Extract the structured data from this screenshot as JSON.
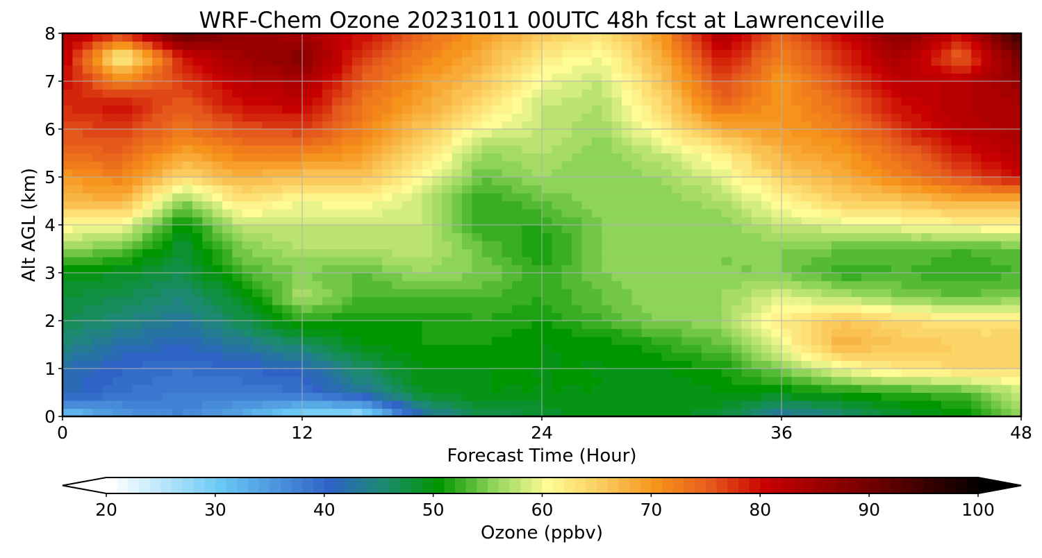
{
  "chart_data": {
    "type": "heatmap",
    "title": "WRF-Chem Ozone  20231011 00UTC 48h fcst at Lawrenceville",
    "xlabel": "Forecast Time (Hour)",
    "ylabel": "Alt AGL (km)",
    "xlim": [
      0,
      48
    ],
    "ylim": [
      0,
      8
    ],
    "x_ticks": [
      0,
      12,
      24,
      36,
      48
    ],
    "y_ticks": [
      0,
      1,
      2,
      3,
      4,
      5,
      6,
      7,
      8
    ],
    "grid": true,
    "x": [
      0,
      3,
      6,
      9,
      12,
      15,
      18,
      21,
      24,
      27,
      30,
      33,
      36,
      39,
      42,
      45,
      48
    ],
    "y": [
      0,
      0.5,
      1,
      1.5,
      2,
      2.5,
      3,
      3.5,
      4,
      4.5,
      5,
      5.5,
      6,
      6.5,
      7,
      7.5,
      8
    ],
    "values": [
      [
        30,
        35,
        37,
        33,
        28,
        26,
        42,
        47,
        48,
        50,
        50,
        48,
        42,
        45,
        48,
        50,
        56
      ],
      [
        42,
        39,
        38,
        38,
        39,
        43,
        49,
        50,
        50,
        50,
        49,
        50,
        50,
        51,
        52,
        53,
        58
      ],
      [
        42,
        40,
        39,
        40,
        41,
        46,
        50,
        50,
        50,
        50,
        50,
        51,
        55,
        60,
        63,
        64,
        64
      ],
      [
        45,
        42,
        41,
        43,
        46,
        50,
        51,
        51,
        50,
        50,
        52,
        54,
        60,
        68,
        66,
        65,
        65
      ],
      [
        47,
        45,
        43,
        47,
        52,
        51,
        51,
        52,
        51,
        53,
        55,
        56,
        62,
        66,
        64,
        63,
        63
      ],
      [
        48,
        47,
        45,
        49,
        57,
        53,
        53,
        53,
        52,
        54,
        56,
        56,
        59,
        57,
        55,
        54,
        55
      ],
      [
        50,
        49,
        47,
        53,
        55,
        54,
        56,
        55,
        52,
        55,
        56,
        55,
        55,
        52,
        53,
        52,
        53
      ],
      [
        56,
        54,
        48,
        55,
        57,
        57,
        58,
        54,
        51,
        55,
        56,
        55,
        55,
        54,
        54,
        53,
        54
      ],
      [
        61,
        60,
        50,
        58,
        58,
        58,
        58,
        52,
        52,
        55,
        55,
        55,
        58,
        59,
        60,
        61,
        62
      ],
      [
        67,
        68,
        55,
        63,
        60,
        61,
        58,
        52,
        54,
        56,
        55,
        57,
        61,
        65,
        66,
        68,
        68
      ],
      [
        70,
        72,
        64,
        68,
        66,
        66,
        61,
        54,
        56,
        55,
        56,
        59,
        65,
        68,
        72,
        76,
        80
      ],
      [
        74,
        75,
        69,
        72,
        72,
        70,
        64,
        56,
        57,
        55,
        58,
        62,
        68,
        70,
        74,
        79,
        83
      ],
      [
        76,
        77,
        73,
        76,
        77,
        72,
        66,
        60,
        58,
        56,
        62,
        68,
        70,
        72,
        78,
        82,
        84
      ],
      [
        78,
        80,
        75,
        80,
        81,
        73,
        69,
        64,
        58,
        57,
        64,
        74,
        70,
        74,
        80,
        83,
        84
      ],
      [
        80,
        72,
        77,
        82,
        84,
        75,
        70,
        66,
        60,
        58,
        66,
        77,
        70,
        76,
        82,
        82,
        86
      ],
      [
        82,
        60,
        79,
        85,
        88,
        77,
        72,
        68,
        62,
        60,
        68,
        80,
        72,
        78,
        84,
        74,
        90
      ],
      [
        84,
        78,
        92,
        86,
        84,
        80,
        74,
        70,
        66,
        63,
        70,
        84,
        74,
        80,
        88,
        80,
        96
      ]
    ],
    "colorbar": {
      "label": "Ozone  (ppbv)",
      "min": 20,
      "max": 100,
      "step": 1,
      "extend": "both",
      "ticks": [
        20,
        30,
        40,
        50,
        60,
        70,
        80,
        90,
        100
      ],
      "colormap_anchors": [
        {
          "value": 20,
          "color": "#ffffff"
        },
        {
          "value": 30,
          "color": "#6ac8f5"
        },
        {
          "value": 40,
          "color": "#2f63c6"
        },
        {
          "value": 45,
          "color": "#1c8a70"
        },
        {
          "value": 50,
          "color": "#009600"
        },
        {
          "value": 55,
          "color": "#8ed35a"
        },
        {
          "value": 60,
          "color": "#fffc96"
        },
        {
          "value": 65,
          "color": "#fbcb5e"
        },
        {
          "value": 70,
          "color": "#f6931b"
        },
        {
          "value": 75,
          "color": "#e6591c"
        },
        {
          "value": 80,
          "color": "#c80000"
        },
        {
          "value": 90,
          "color": "#6e0000"
        },
        {
          "value": 100,
          "color": "#000000"
        }
      ]
    }
  }
}
